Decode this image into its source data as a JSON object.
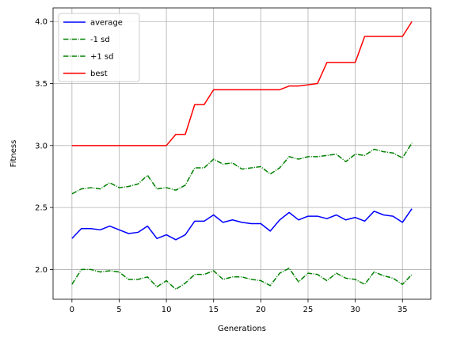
{
  "chart_data": {
    "type": "line",
    "title": "",
    "xlabel": "Generations",
    "ylabel": "Fitness",
    "xlim": [
      -2.0,
      38.0
    ],
    "ylim": [
      1.76,
      4.11
    ],
    "xticks": [
      0,
      5,
      10,
      15,
      20,
      25,
      30,
      35
    ],
    "yticks": [
      2.0,
      2.5,
      3.0,
      3.5,
      4.0
    ],
    "grid": true,
    "legend_position": "top-left",
    "x": [
      0,
      1,
      2,
      3,
      4,
      5,
      6,
      7,
      8,
      9,
      10,
      11,
      12,
      13,
      14,
      15,
      16,
      17,
      18,
      19,
      20,
      21,
      22,
      23,
      24,
      25,
      26,
      27,
      28,
      29,
      30,
      31,
      32,
      33,
      34,
      35,
      36
    ],
    "series": [
      {
        "name": "average",
        "color": "#0000ff",
        "style": "solid",
        "values": [
          2.25,
          2.33,
          2.33,
          2.32,
          2.35,
          2.32,
          2.29,
          2.3,
          2.35,
          2.25,
          2.28,
          2.24,
          2.28,
          2.39,
          2.39,
          2.44,
          2.38,
          2.4,
          2.38,
          2.37,
          2.37,
          2.31,
          2.4,
          2.46,
          2.4,
          2.43,
          2.43,
          2.41,
          2.44,
          2.4,
          2.42,
          2.39,
          2.47,
          2.44,
          2.43,
          2.38,
          2.49
        ]
      },
      {
        "name": "-1 sd",
        "color": "#008000",
        "style": "dashdot",
        "values": [
          1.88,
          2.0,
          2.0,
          1.98,
          1.99,
          1.98,
          1.92,
          1.92,
          1.94,
          1.86,
          1.91,
          1.84,
          1.89,
          1.96,
          1.96,
          1.99,
          1.92,
          1.94,
          1.94,
          1.92,
          1.91,
          1.87,
          1.97,
          2.01,
          1.9,
          1.97,
          1.96,
          1.91,
          1.97,
          1.93,
          1.92,
          1.88,
          1.98,
          1.95,
          1.93,
          1.88,
          1.96
        ]
      },
      {
        "name": "+1 sd",
        "color": "#008000",
        "style": "dashdot",
        "values": [
          2.61,
          2.65,
          2.66,
          2.65,
          2.7,
          2.66,
          2.67,
          2.69,
          2.76,
          2.65,
          2.66,
          2.64,
          2.68,
          2.82,
          2.82,
          2.89,
          2.85,
          2.86,
          2.81,
          2.82,
          2.83,
          2.77,
          2.82,
          2.91,
          2.89,
          2.91,
          2.91,
          2.92,
          2.93,
          2.87,
          2.93,
          2.92,
          2.97,
          2.95,
          2.94,
          2.9,
          3.02
        ]
      },
      {
        "name": "best",
        "color": "#ff0000",
        "style": "solid",
        "values": [
          3.0,
          3.0,
          3.0,
          3.0,
          3.0,
          3.0,
          3.0,
          3.0,
          3.0,
          3.0,
          3.0,
          3.09,
          3.09,
          3.33,
          3.33,
          3.45,
          3.45,
          3.45,
          3.45,
          3.45,
          3.45,
          3.45,
          3.45,
          3.48,
          3.48,
          3.49,
          3.5,
          3.67,
          3.67,
          3.67,
          3.67,
          3.88,
          3.88,
          3.88,
          3.88,
          3.88,
          4.0
        ]
      }
    ]
  }
}
